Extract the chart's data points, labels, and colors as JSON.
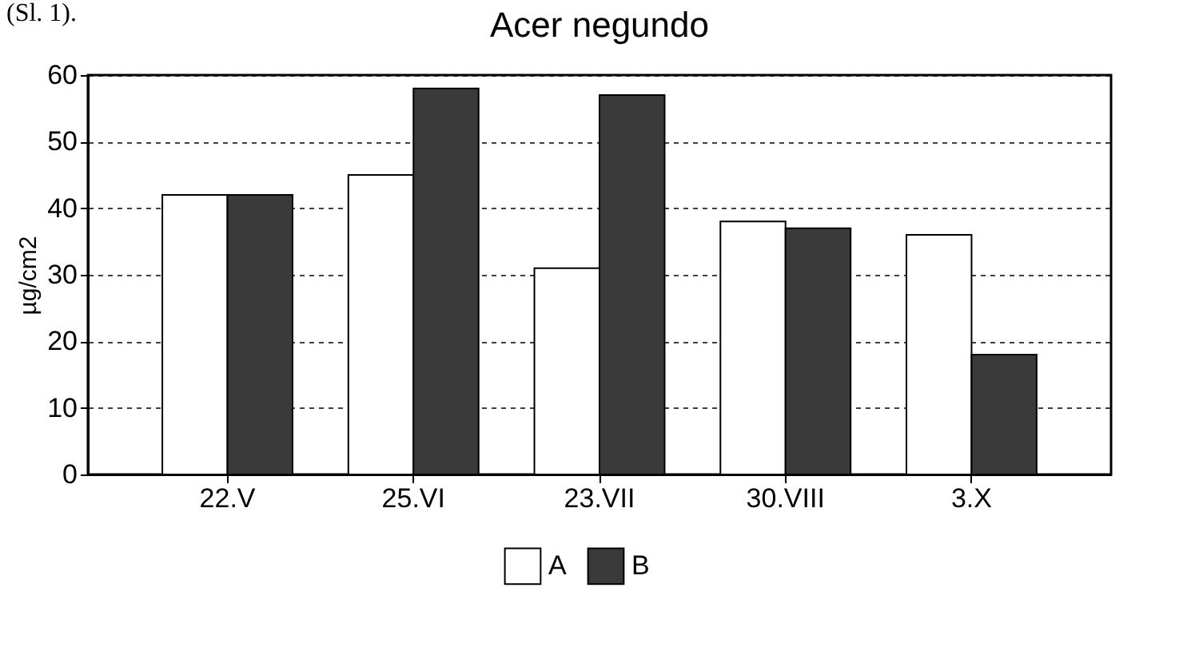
{
  "chart_data": {
    "type": "bar",
    "title": "Acer negundo",
    "ylabel": "µg/cm2",
    "annotations": [
      "(Sl. 1)."
    ],
    "categories": [
      "22.V",
      "25.VI",
      "23.VII",
      "30.VIII",
      "3.X"
    ],
    "series": [
      {
        "name": "A",
        "color": "#ffffff",
        "values": [
          42,
          45,
          31,
          38,
          36
        ]
      },
      {
        "name": "B",
        "color": "#3a3a3a",
        "values": [
          42,
          58,
          57,
          37,
          18
        ]
      }
    ],
    "ylim": [
      0,
      60
    ],
    "yticks": [
      0,
      10,
      20,
      30,
      40,
      50,
      60
    ],
    "grid": "y",
    "legend": "bottom"
  }
}
